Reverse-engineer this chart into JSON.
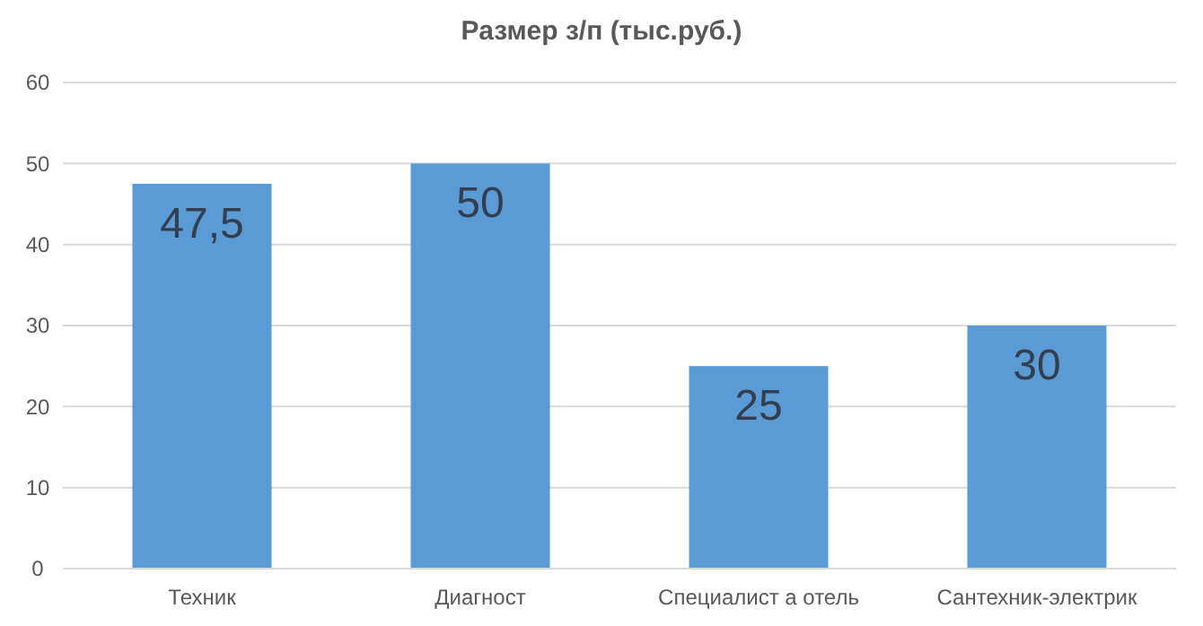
{
  "chart_data": {
    "type": "bar",
    "title": "Размер з/п (тыс.руб.)",
    "categories": [
      "Техник",
      "Диагност",
      "Специалист а отель",
      "Сантехник-электрик"
    ],
    "values": [
      47.5,
      50,
      25,
      30
    ],
    "color": "#5b9bd5",
    "value_labels": [
      "47,5",
      "50",
      "25",
      "30"
    ],
    "ylim": [
      0,
      60
    ],
    "yticks": [
      0,
      10,
      20,
      30,
      40,
      50,
      60
    ],
    "grid": "y"
  }
}
